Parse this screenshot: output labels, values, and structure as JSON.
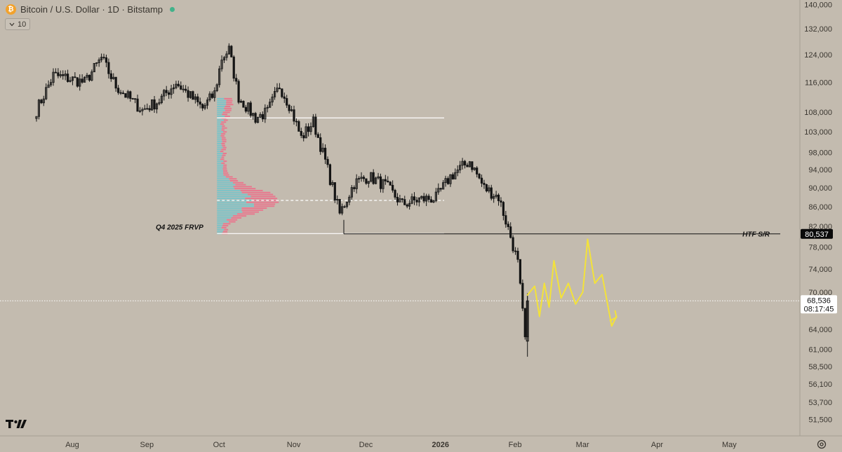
{
  "header": {
    "coin_icon": "bitcoin-icon",
    "coin_symbol": "₿",
    "title": "Bitcoin / U.S. Dollar · 1D · Bitstamp",
    "status_color": "#41b28a"
  },
  "indicator": {
    "chevron_icon": "chevron-down-icon",
    "value": "10"
  },
  "footer": {
    "logo_icon": "tradingview-logo-icon",
    "settings_icon": "settings-icon"
  },
  "colors": {
    "background": "#c3bbaf",
    "candle": "#141414",
    "projection": "#f3e23a",
    "volume_up": "#7cc3c8",
    "volume_down": "#e8788e",
    "level_line": "#ffffff",
    "price_tag": "#0a0a0a"
  },
  "chart_data": {
    "type": "candlestick",
    "symbol": "Bitcoin / U.S. Dollar",
    "interval": "1D",
    "exchange": "Bitstamp",
    "y_scale": "log",
    "y_ticks": [
      "140,000",
      "132,000",
      "124,000",
      "116,000",
      "108,000",
      "103,000",
      "98,000",
      "94,000",
      "90,000",
      "86,000",
      "82,000",
      "78,000",
      "74,000",
      "70,000",
      "64,000",
      "61,000",
      "58,500",
      "56,100",
      "53,700",
      "51,500"
    ],
    "x_ticks": [
      "Aug",
      "Sep",
      "Oct",
      "Nov",
      "Dec",
      "2026",
      "Feb",
      "Mar",
      "Apr",
      "May"
    ],
    "ylim": [
      49500,
      141500
    ],
    "price_path": [
      [
        "2025-07-18",
        108500
      ],
      [
        "2025-07-25",
        118000
      ],
      [
        "2025-08-01",
        117000
      ],
      [
        "2025-08-07",
        116000
      ],
      [
        "2025-08-14",
        123000
      ],
      [
        "2025-08-20",
        115000
      ],
      [
        "2025-08-31",
        108500
      ],
      [
        "2025-09-07",
        111000
      ],
      [
        "2025-09-14",
        116000
      ],
      [
        "2025-09-25",
        109000
      ],
      [
        "2025-09-30",
        113000
      ],
      [
        "2025-10-03",
        123000
      ],
      [
        "2025-10-06",
        125500
      ],
      [
        "2025-10-10",
        112000
      ],
      [
        "2025-10-17",
        106500
      ],
      [
        "2025-10-22",
        108000
      ],
      [
        "2025-10-27",
        115000
      ],
      [
        "2025-10-31",
        110000
      ],
      [
        "2025-11-05",
        101500
      ],
      [
        "2025-11-10",
        105500
      ],
      [
        "2025-11-15",
        96000
      ],
      [
        "2025-11-21",
        84500
      ],
      [
        "2025-11-27",
        91000
      ],
      [
        "2025-12-03",
        92500
      ],
      [
        "2025-12-10",
        90500
      ],
      [
        "2025-12-17",
        86500
      ],
      [
        "2025-12-24",
        87500
      ],
      [
        "2025-12-31",
        87800
      ],
      [
        "2026-01-06",
        92500
      ],
      [
        "2026-01-14",
        96000
      ],
      [
        "2026-01-20",
        90000
      ],
      [
        "2026-01-26",
        88000
      ],
      [
        "2026-01-31",
        80000
      ],
      [
        "2026-02-03",
        75000
      ],
      [
        "2026-02-05",
        66500
      ],
      [
        "2026-02-06",
        62500
      ],
      [
        "2026-02-07",
        68536
      ]
    ],
    "current_price": {
      "value": 68536,
      "label": "68,536",
      "countdown": "08:17:45"
    },
    "annotations": [
      {
        "label": "HTF S/R",
        "value": 80537,
        "price_label": "80,537"
      },
      {
        "label": "Q4 2025 FRVP"
      }
    ],
    "frvp": {
      "start": "2025-10-01",
      "end": "2025-12-31",
      "value_area_high": 106500,
      "point_of_control": 87300,
      "value_area_low": 80600
    },
    "projection_path": [
      [
        "2026-02-07",
        69500
      ],
      [
        "2026-02-10",
        71000
      ],
      [
        "2026-02-12",
        66000
      ],
      [
        "2026-02-14",
        71500
      ],
      [
        "2026-02-16",
        67500
      ],
      [
        "2026-02-18",
        75500
      ],
      [
        "2026-02-21",
        69000
      ],
      [
        "2026-02-24",
        71500
      ],
      [
        "2026-02-27",
        68000
      ],
      [
        "2026-03-02",
        70000
      ],
      [
        "2026-03-04",
        79500
      ],
      [
        "2026-03-07",
        71500
      ],
      [
        "2026-03-10",
        73000
      ],
      [
        "2026-03-14",
        64500
      ],
      [
        "2026-03-16",
        66000
      ]
    ]
  }
}
